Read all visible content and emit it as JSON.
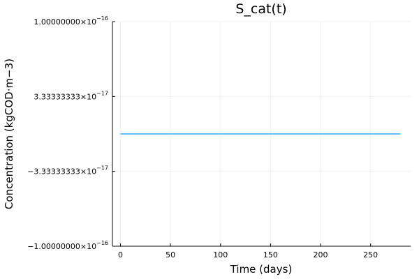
{
  "chart_data": {
    "type": "line",
    "title": "S_cat(t)",
    "xlabel": "Time (days)",
    "ylabel": "Concentration (kgCOD·m−3)",
    "xlim": [
      -8,
      290
    ],
    "ylim": [
      -1e-16,
      1e-16
    ],
    "x_ticks": [
      0,
      50,
      100,
      150,
      200,
      250
    ],
    "x_tick_labels": [
      "0",
      "50",
      "100",
      "150",
      "200",
      "250"
    ],
    "y_ticks": [
      -1e-16,
      -3.33333333e-17,
      3.33333333e-17,
      1e-16
    ],
    "y_tick_labels": [
      {
        "mantissa": "−1.00000000×10",
        "exp": "−16"
      },
      {
        "mantissa": "−3.33333333×10",
        "exp": "−17"
      },
      {
        "mantissa": "3.33333333×10",
        "exp": "−17"
      },
      {
        "mantissa": "1.00000000×10",
        "exp": "−16"
      }
    ],
    "grid": true,
    "legend": false,
    "series": [
      {
        "color": "#009AFA",
        "x": [
          0,
          280
        ],
        "y": [
          0,
          0
        ]
      }
    ]
  }
}
